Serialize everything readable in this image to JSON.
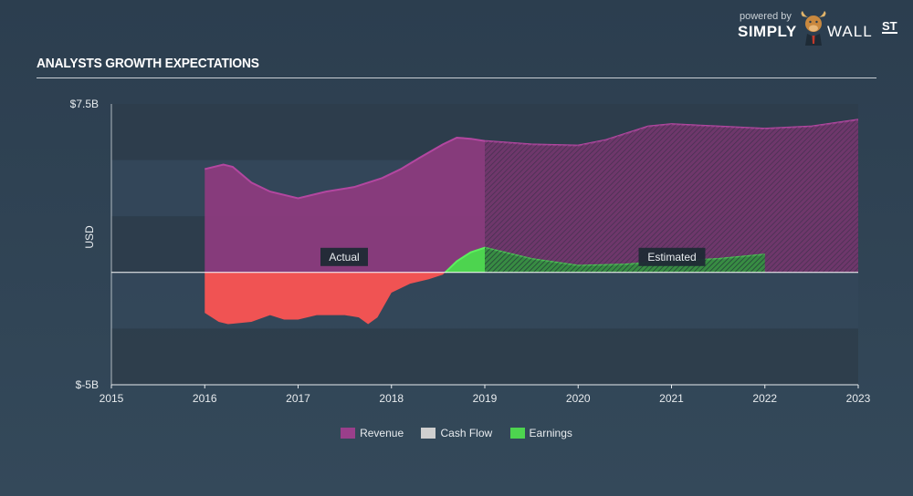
{
  "header": {
    "title": "ANALYSTS GROWTH EXPECTATIONS",
    "brand_powered": "powered by",
    "brand_simply": "SIMPLY",
    "brand_wall": "WALL",
    "brand_st": "ST"
  },
  "colors": {
    "revenue": "#8e3b7f",
    "revenue_line": "#b347a0",
    "cashflow": "#cfcfcf",
    "earnings_pos": "#4dd44f",
    "earnings_neg": "#f05353",
    "zero_line": "#ffffff"
  },
  "chart_data": {
    "type": "area",
    "ylabel": "USD",
    "ytick_labels": [
      "$7.5B",
      "$-5B"
    ],
    "ylim": [
      -5,
      7.5
    ],
    "xlim": [
      2015,
      2023
    ],
    "xtick_labels": [
      "2015",
      "2016",
      "2017",
      "2018",
      "2019",
      "2020",
      "2021",
      "2022",
      "2023"
    ],
    "annotations": [
      "Actual",
      "Estimated"
    ],
    "split_x": 2019,
    "series": [
      {
        "name": "Revenue",
        "x": [
          2016.0,
          2016.2,
          2016.3,
          2016.5,
          2016.7,
          2017.0,
          2017.3,
          2017.6,
          2017.9,
          2018.1,
          2018.3,
          2018.55,
          2018.7,
          2018.85,
          2019.0,
          2019.5,
          2020.0,
          2020.3,
          2020.75,
          2021.0,
          2021.5,
          2022.0,
          2022.5,
          2023.0
        ],
        "values": [
          4.6,
          4.8,
          4.7,
          4.0,
          3.6,
          3.3,
          3.6,
          3.8,
          4.2,
          4.6,
          5.1,
          5.7,
          6.0,
          5.95,
          5.85,
          5.7,
          5.65,
          5.9,
          6.5,
          6.6,
          6.5,
          6.4,
          6.5,
          6.8
        ]
      },
      {
        "name": "Cash Flow",
        "x": [],
        "values": []
      },
      {
        "name": "Earnings",
        "x": [
          2016.0,
          2016.15,
          2016.25,
          2016.5,
          2016.7,
          2016.85,
          2017.0,
          2017.2,
          2017.5,
          2017.65,
          2017.75,
          2017.85,
          2018.0,
          2018.2,
          2018.4,
          2018.55,
          2018.7,
          2018.85,
          2019.0,
          2019.5,
          2020.0,
          2020.5,
          2021.0,
          2021.5,
          2022.0
        ],
        "values": [
          -1.8,
          -2.2,
          -2.3,
          -2.2,
          -1.9,
          -2.1,
          -2.1,
          -1.9,
          -1.9,
          -2.0,
          -2.3,
          -2.0,
          -0.9,
          -0.5,
          -0.3,
          -0.1,
          0.5,
          0.9,
          1.1,
          0.6,
          0.3,
          0.35,
          0.5,
          0.6,
          0.8
        ]
      }
    ],
    "legend": [
      "Revenue",
      "Cash Flow",
      "Earnings"
    ]
  }
}
